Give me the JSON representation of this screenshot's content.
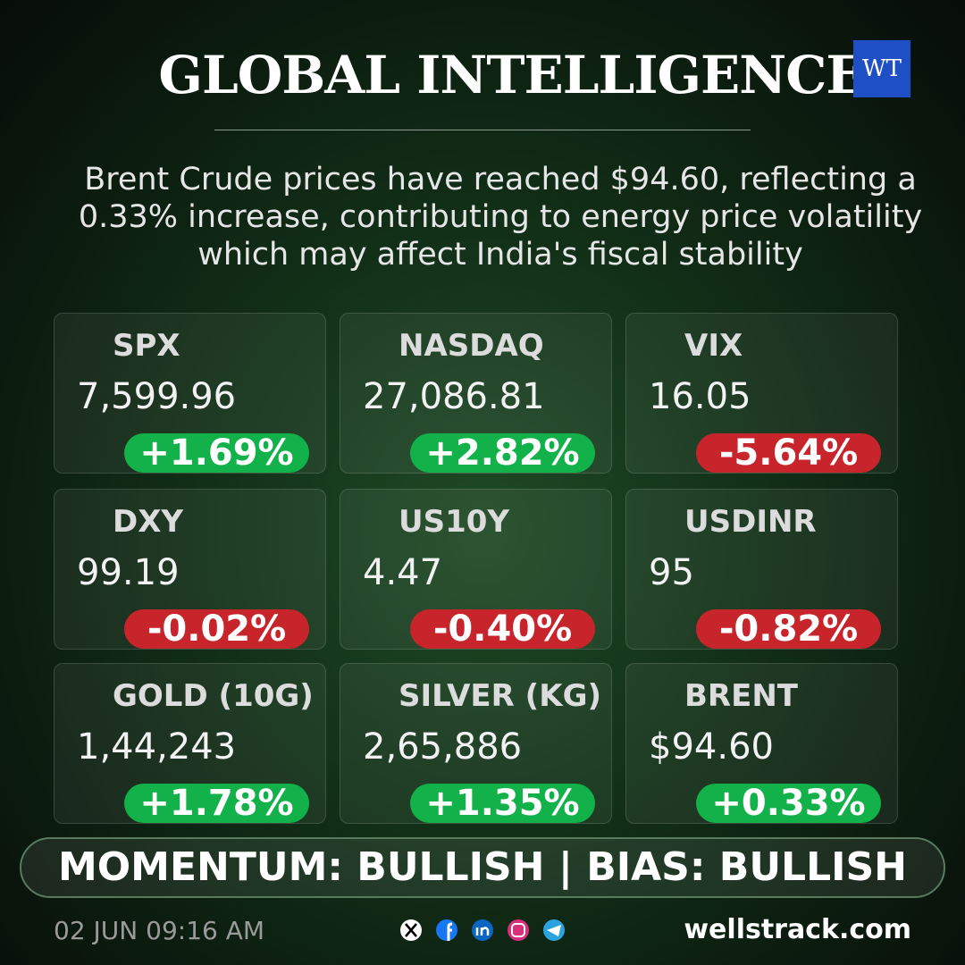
{
  "header": {
    "title": "GLOBAL INTELLIGENCE",
    "logo": "WT",
    "description": "Brent Crude prices have reached $94.60, reflecting a 0.33% increase, contributing to energy price volatility which may affect India's fiscal stability"
  },
  "tiles": [
    {
      "name": "SPX",
      "value": "7,599.96",
      "change": "+1.69%",
      "color": "#12b14a"
    },
    {
      "name": "NASDAQ",
      "value": "27,086.81",
      "change": "+2.82%",
      "color": "#12b14a"
    },
    {
      "name": "VIX",
      "value": "16.05",
      "change": "-5.64%",
      "color": "#c8242c"
    },
    {
      "name": "DXY",
      "value": "99.19",
      "change": "-0.02%",
      "color": "#c8242c"
    },
    {
      "name": "US10Y",
      "value": "4.47",
      "change": "-0.40%",
      "color": "#c8242c"
    },
    {
      "name": "USDINR",
      "value": "95",
      "change": "-0.82%",
      "color": "#c8242c"
    },
    {
      "name": "GOLD (10G)",
      "value": "1,44,243",
      "change": "+1.78%",
      "color": "#12b14a"
    },
    {
      "name": "SILVER (KG)",
      "value": "2,65,886",
      "change": "+1.35%",
      "color": "#12b14a"
    },
    {
      "name": "BRENT",
      "value": "$94.60",
      "change": "+0.33%",
      "color": "#12b14a"
    }
  ],
  "banner": "MOMENTUM: BULLISH | BIAS: BULLISH",
  "footer": {
    "timestamp": "02 JUN 09:16 AM",
    "website": "wellstrack.com"
  }
}
